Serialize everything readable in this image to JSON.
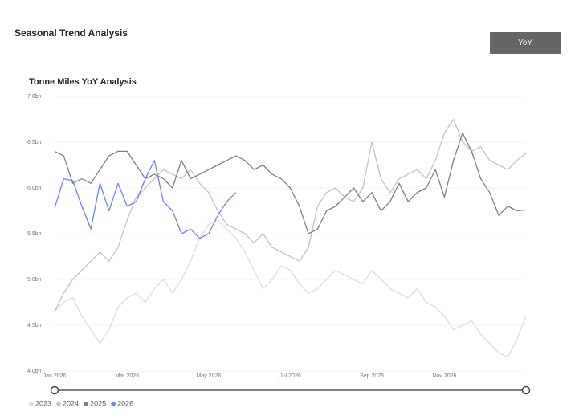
{
  "page": {
    "title": "Seasonal Trend Analysis",
    "button": "YoY"
  },
  "chart_data": {
    "type": "line",
    "title": "Tonne Miles YoY Analysis",
    "categories": [
      "Jan 2026",
      null,
      null,
      null,
      null,
      null,
      null,
      null,
      "Mar 2026",
      null,
      null,
      null,
      null,
      null,
      null,
      null,
      null,
      "May 2026",
      null,
      null,
      null,
      null,
      null,
      null,
      null,
      null,
      "Jul 2026",
      null,
      null,
      null,
      null,
      null,
      null,
      null,
      null,
      "Sep 2026",
      null,
      null,
      null,
      null,
      null,
      null,
      null,
      "Nov 2026",
      null,
      null,
      null,
      null,
      null,
      null,
      null,
      null,
      null
    ],
    "ylim": [
      4,
      7
    ],
    "yticks": [
      {
        "value": 4,
        "label": "4.0bn"
      },
      {
        "value": 4.5,
        "label": "4.5bn"
      },
      {
        "value": 5,
        "label": "5.0bn"
      },
      {
        "value": 5.5,
        "label": "5.5bn"
      },
      {
        "value": 6,
        "label": "6.0bn"
      },
      {
        "value": 6.5,
        "label": "6.5bn"
      },
      {
        "value": 7,
        "label": "7.0bn"
      }
    ],
    "grid": true,
    "series": [
      {
        "name": "2023",
        "color": "#dcdcdc",
        "values": [
          4.65,
          4.75,
          4.8,
          4.6,
          4.45,
          4.3,
          4.45,
          4.7,
          4.8,
          4.85,
          4.75,
          4.9,
          5.0,
          4.85,
          5.0,
          5.2,
          5.45,
          5.6,
          5.65,
          5.55,
          5.45,
          5.3,
          5.1,
          4.9,
          5.0,
          5.15,
          5.1,
          4.95,
          4.85,
          4.9,
          5.0,
          5.1,
          5.05,
          5.0,
          4.95,
          5.1,
          5.0,
          4.9,
          4.85,
          4.8,
          4.9,
          4.75,
          4.7,
          4.6,
          4.45,
          4.5,
          4.55,
          4.4,
          4.3,
          4.2,
          4.15,
          4.35,
          4.6
        ]
      },
      {
        "name": "2024",
        "color": "#c2c2c2",
        "values": [
          4.65,
          4.85,
          5.0,
          5.1,
          5.2,
          5.3,
          5.2,
          5.35,
          5.65,
          5.9,
          6.0,
          6.1,
          6.2,
          6.15,
          6.1,
          6.2,
          6.05,
          5.95,
          5.75,
          5.6,
          5.55,
          5.5,
          5.4,
          5.5,
          5.35,
          5.3,
          5.25,
          5.2,
          5.35,
          5.8,
          5.95,
          6.0,
          5.9,
          5.85,
          6.0,
          6.5,
          6.1,
          5.95,
          6.1,
          6.15,
          6.2,
          6.1,
          6.3,
          6.6,
          6.75,
          6.5,
          6.4,
          6.45,
          6.3,
          6.25,
          6.2,
          6.3,
          6.38
        ]
      },
      {
        "name": "2025",
        "color": "#7f7f7f",
        "values": [
          6.4,
          6.35,
          6.05,
          6.1,
          6.05,
          6.2,
          6.35,
          6.4,
          6.4,
          6.25,
          6.1,
          6.15,
          6.1,
          6.0,
          6.3,
          6.1,
          6.15,
          6.2,
          6.25,
          6.3,
          6.35,
          6.3,
          6.2,
          6.25,
          6.15,
          6.1,
          6.0,
          5.8,
          5.5,
          5.55,
          5.75,
          5.8,
          5.9,
          6.0,
          5.85,
          5.95,
          5.75,
          5.85,
          6.05,
          5.85,
          5.95,
          6.0,
          6.2,
          5.9,
          6.3,
          6.6,
          6.4,
          6.1,
          5.95,
          5.7,
          5.8,
          5.75,
          5.76
        ]
      },
      {
        "name": "2026",
        "color": "#6a86e8",
        "values": [
          5.78,
          6.1,
          6.08,
          5.8,
          5.55,
          6.05,
          5.75,
          6.05,
          5.8,
          5.85,
          6.1,
          6.3,
          5.85,
          5.75,
          5.5,
          5.55,
          5.45,
          5.5,
          5.7,
          5.85,
          5.95,
          null,
          null,
          null,
          null,
          null,
          null,
          null,
          null,
          null,
          null,
          null,
          null,
          null,
          null,
          null,
          null,
          null,
          null,
          null,
          null,
          null,
          null,
          null,
          null,
          null,
          null,
          null,
          null,
          null,
          null,
          null,
          null
        ]
      }
    ]
  }
}
